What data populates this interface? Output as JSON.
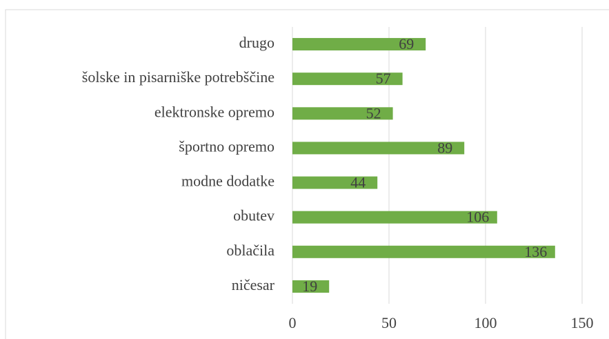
{
  "chart_data": {
    "type": "bar",
    "orientation": "horizontal",
    "categories": [
      "drugo",
      "šolske in pisarniške potrebščine",
      "elektronske opremo",
      "športno opremo",
      "modne dodatke",
      "obutev",
      "oblačila",
      "ničesar"
    ],
    "values": [
      69,
      57,
      52,
      89,
      44,
      106,
      136,
      19
    ],
    "color": "#70ad47",
    "xlim": [
      0,
      150
    ],
    "xticks": [
      0,
      50,
      100,
      150
    ],
    "grid": true
  }
}
